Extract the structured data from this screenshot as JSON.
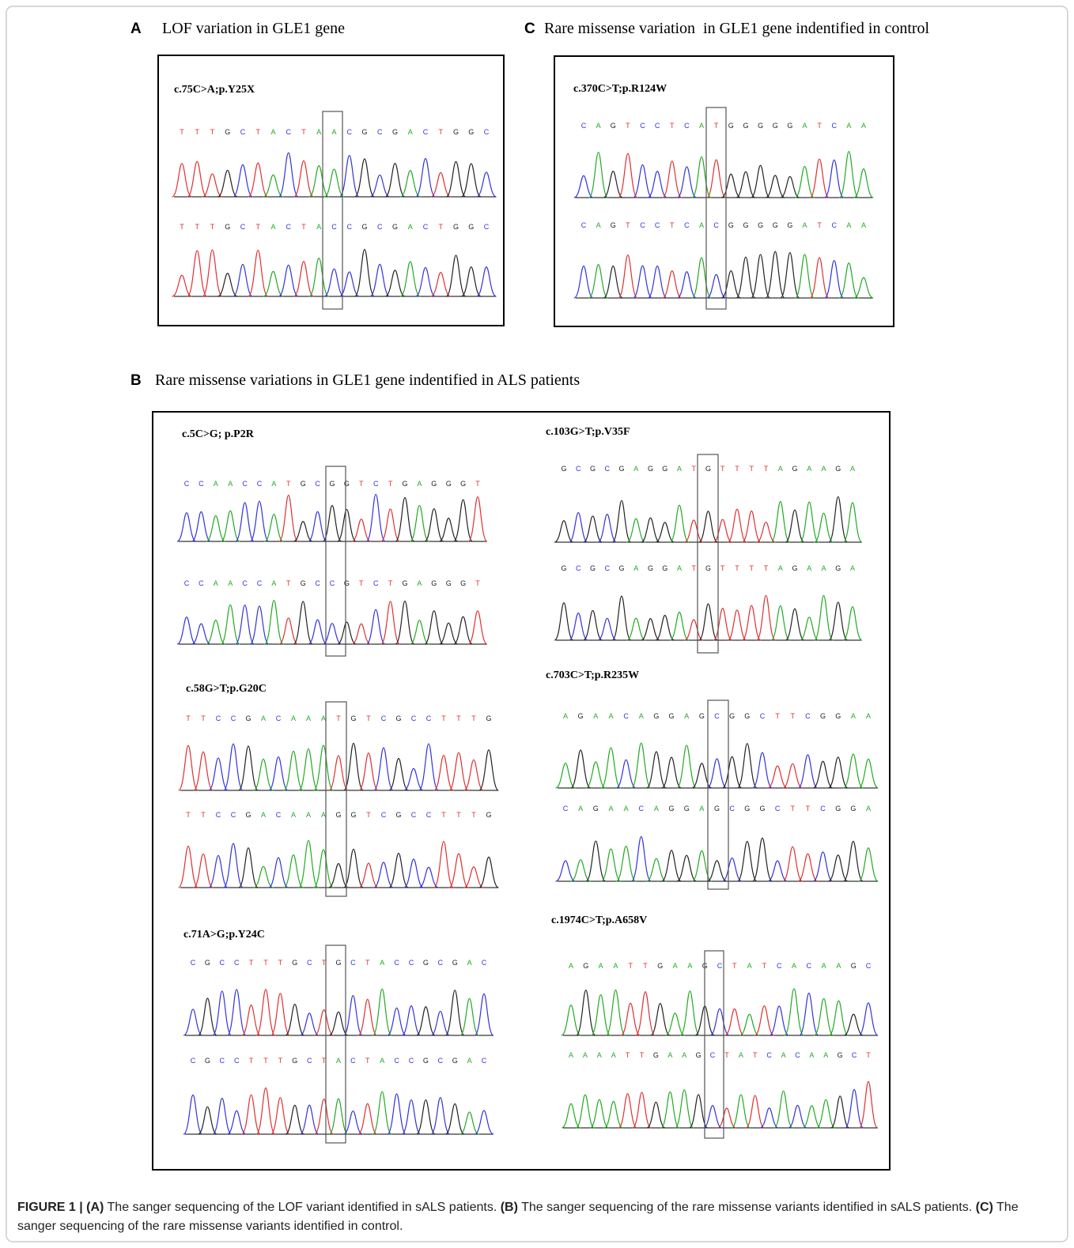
{
  "sections": [
    {
      "label": "A",
      "title": "LOF variation in GLE1 gene",
      "variants": [
        {
          "name": "c.75C>A;p.Y25X",
          "upper": "TTTGCTACTAACGCGACTGGC",
          "lower": "TTTGCTACTACCGCGACTGGC"
        }
      ]
    },
    {
      "label": "C",
      "title": "Rare missense variation  in GLE1 gene indentified in control",
      "variants": [
        {
          "name": "c.370C>T;p.R124W",
          "upper": "CAGTCCTCATGGGGGATCAA",
          "lower": "CAGTCCTCACGGGGGATCAA"
        }
      ]
    },
    {
      "label": "B",
      "title": "Rare missense variations in GLE1 gene indentified in ALS patients",
      "variants": [
        {
          "name": "c.5C>G; p.P2R",
          "upper": "CCAACCATGCGGTCTGAGGGT",
          "lower": "CCAACCATGCCGTCTGAGGGT"
        },
        {
          "name": "c.103G>T;p.V35F",
          "upper": "GCGCGAGGATGTTTTAGAAGA",
          "lower": "GCGCGAGGATGTTTTAGAAGA"
        },
        {
          "name": "c.58G>T;p.G20C",
          "upper": "TTCCGACAAATGTCGCCTTTG",
          "lower": "TTCCGACAAAGGTCGCCTTTG"
        },
        {
          "name": "c.703C>T;p.R235W",
          "upper": "AGAACAGGAGCGGCTTCGGAA",
          "lower": "CAGAACAGGAGCGGCTTCGGA"
        },
        {
          "name": "c.71A>G;p.Y24C",
          "upper": "CGCCTTTGCTGCTACCGCGAC",
          "lower": "CGCCTTTGCTACTACCGCGAC"
        },
        {
          "name": "c.1974C>T;p.A658V",
          "upper": "AGAATTGAAGCTATCACAAGC",
          "lower": "AAAATTGAAGCTATCACAAGCT"
        }
      ]
    }
  ],
  "caption": [
    {
      "text": "FIGURE 1 | (A)",
      "bold": true
    },
    {
      "text": " The sanger sequencing of the LOF variant identified in sALS patients. ",
      "bold": false
    },
    {
      "text": "(B)",
      "bold": true
    },
    {
      "text": " The sanger sequencing of the rare missense variants identified in sALS patients. ",
      "bold": false
    },
    {
      "text": "(C)",
      "bold": true
    },
    {
      "text": " The sanger sequencing of the rare missense variants identified in control.",
      "bold": false
    }
  ]
}
